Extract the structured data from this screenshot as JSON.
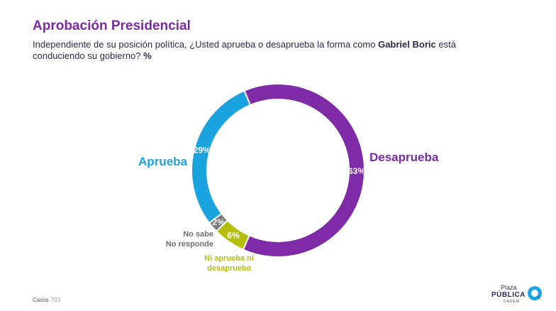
{
  "header": {
    "title": "Aprobación Presidencial",
    "subtitle_part1": "Independiente de su posición política, ¿Usted aprueba o desaprueba la forma como ",
    "subtitle_bold": "Gabriel Boric",
    "subtitle_part2": " está conduciendo su gobierno? ",
    "subtitle_unit": "%"
  },
  "chart_data": {
    "type": "pie",
    "categories": [
      "Desaprueba",
      "Ni aprueba ni desaprueba",
      "No sabe No responde",
      "Aprueba"
    ],
    "values": [
      63,
      6,
      2,
      29
    ],
    "value_labels": [
      "63%",
      "6%",
      "2%",
      "29%"
    ],
    "colors": [
      "#7f2aa6",
      "#b4be0f",
      "#7a7a7a",
      "#1aa3de"
    ],
    "labels": {
      "aprueba": "Aprueba",
      "desaprueba": "Desaprueba",
      "nosabe_line1": "No sabe",
      "nosabe_line2": "No responde",
      "niaprueba_line1": "Ni aprueba ni",
      "niaprueba_line2": "desaprueba"
    }
  },
  "footer": {
    "casos_label": "Casos",
    "casos_value": "703",
    "logo_line1": "Plaza",
    "logo_line2": "PÚBLICA",
    "logo_line3": "CADEM",
    "logo_color": "#1aa3de"
  }
}
